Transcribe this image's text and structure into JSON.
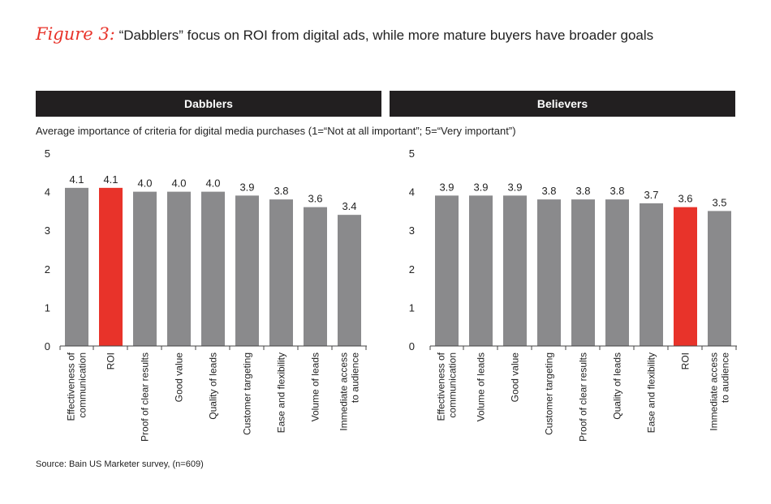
{
  "figure_label": "Figure 3:",
  "figure_title": "“Dabblers” focus on ROI from digital ads, while more mature buyers have broader goals",
  "subtitle": "Average importance of criteria for digital media purchases (1=“Not at all important”; 5=“Very important”)",
  "source": "Source: Bain US Marketer survey, (n=609)",
  "colors": {
    "bar": "#8a8a8c",
    "highlight": "#e8332a",
    "header_bg": "#221f20"
  },
  "chart_data": [
    {
      "type": "bar",
      "title": "Dabblers",
      "ylim": [
        0,
        5
      ],
      "yticks": [
        0,
        1,
        2,
        3,
        4,
        5
      ],
      "categories": [
        "Effectiveness of communication",
        "ROI",
        "Proof of clear results",
        "Good value",
        "Quality of leads",
        "Customer targeting",
        "Ease and flexibility",
        "Volume of leads",
        "Immediate access to audience"
      ],
      "category_lines": [
        [
          "Effectiveness of",
          "communication"
        ],
        [
          "ROI"
        ],
        [
          "Proof of clear results"
        ],
        [
          "Good value"
        ],
        [
          "Quality of leads"
        ],
        [
          "Customer targeting"
        ],
        [
          "Ease and flexibility"
        ],
        [
          "Volume of leads"
        ],
        [
          "Immediate access",
          "to audience"
        ]
      ],
      "values": [
        4.1,
        4.1,
        4.0,
        4.0,
        4.0,
        3.9,
        3.8,
        3.6,
        3.4
      ],
      "labels": [
        "4.1",
        "4.1",
        "4.0",
        "4.0",
        "4.0",
        "3.9",
        "3.8",
        "3.6",
        "3.4"
      ],
      "highlight": "ROI"
    },
    {
      "type": "bar",
      "title": "Believers",
      "ylim": [
        0,
        5
      ],
      "yticks": [
        0,
        1,
        2,
        3,
        4,
        5
      ],
      "categories": [
        "Effectiveness of communication",
        "Volume of leads",
        "Good value",
        "Customer targeting",
        "Proof of clear results",
        "Quality of leads",
        "Ease and flexibility",
        "ROI",
        "Immediate access to audience"
      ],
      "category_lines": [
        [
          "Effectiveness of",
          "communication"
        ],
        [
          "Volume of leads"
        ],
        [
          "Good value"
        ],
        [
          "Customer targeting"
        ],
        [
          "Proof of clear results"
        ],
        [
          "Quality of leads"
        ],
        [
          "Ease and flexibility"
        ],
        [
          "ROI"
        ],
        [
          "Immediate access",
          "to audience"
        ]
      ],
      "values": [
        3.9,
        3.9,
        3.9,
        3.8,
        3.8,
        3.8,
        3.7,
        3.6,
        3.5
      ],
      "labels": [
        "3.9",
        "3.9",
        "3.9",
        "3.8",
        "3.8",
        "3.8",
        "3.7",
        "3.6",
        "3.5"
      ],
      "highlight": "ROI"
    }
  ]
}
